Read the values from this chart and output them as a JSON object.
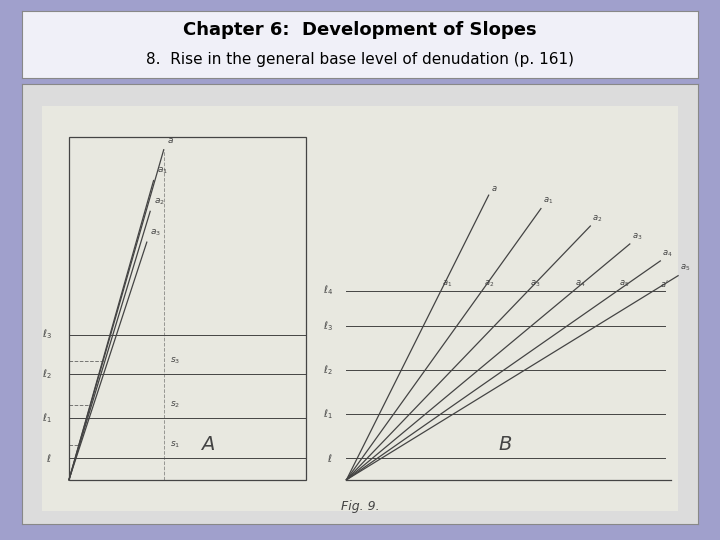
{
  "title_line1": "Chapter 6:  Development of Slopes",
  "title_line2": "8.  Rise in the general base level of denudation (p. 161)",
  "fig_label": "Fig. 9.",
  "background_color": "#a0a0cc",
  "header_bg": "#f0f0f8",
  "diagram_bg": "#dcdcdc",
  "title1_fontsize": 13,
  "title2_fontsize": 11,
  "panel_A_label": "A",
  "panel_B_label": "B"
}
